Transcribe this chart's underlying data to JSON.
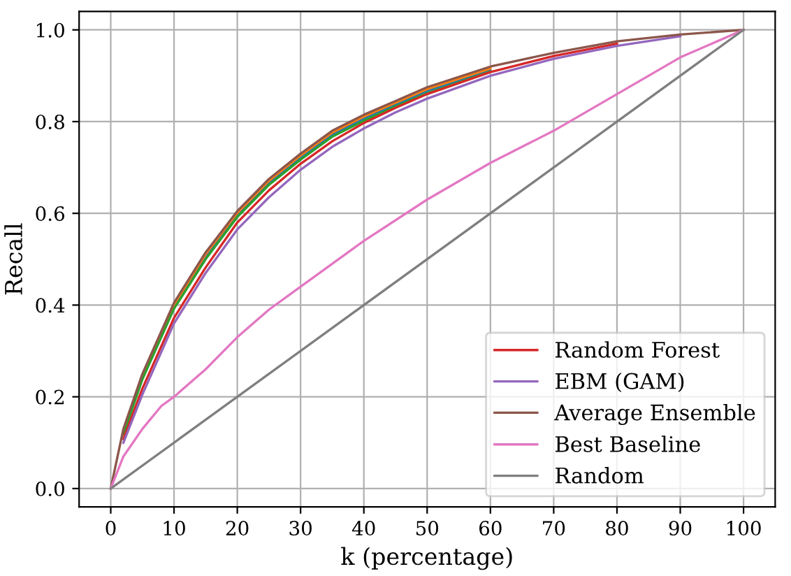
{
  "chart_data": {
    "type": "line",
    "xlabel": "k (percentage)",
    "ylabel": "Recall",
    "xlim": [
      -5,
      105
    ],
    "ylim": [
      -0.04,
      1.04
    ],
    "xticks": [
      0,
      10,
      20,
      30,
      40,
      50,
      60,
      70,
      80,
      90,
      100
    ],
    "yticks": [
      {
        "value": 0,
        "label": "0.0"
      },
      {
        "value": 0.2,
        "label": "0.2"
      },
      {
        "value": 0.4,
        "label": "0.4"
      },
      {
        "value": 0.6,
        "label": "0.6"
      },
      {
        "value": 0.8,
        "label": "0.8"
      },
      {
        "value": 1,
        "label": "1.0"
      }
    ],
    "grid": true,
    "legend": "bottom right",
    "marker": "none",
    "line_style": "solid",
    "series": [
      {
        "color": "#1f77b4",
        "x": [
          10,
          15,
          20,
          25,
          30,
          35,
          40,
          45,
          50,
          60
        ],
        "values": [
          0.397,
          0.507,
          0.597,
          0.667,
          0.722,
          0.772,
          0.807,
          0.837,
          0.867,
          0.912
        ]
      },
      {
        "color": "#ff7f0e",
        "x": [
          2,
          5,
          10,
          15,
          20,
          25,
          30,
          35,
          40,
          45,
          50,
          60
        ],
        "values": [
          0.126,
          0.246,
          0.401,
          0.511,
          0.601,
          0.671,
          0.726,
          0.776,
          0.811,
          0.841,
          0.871,
          0.916
        ]
      },
      {
        "color": "#2ca02c",
        "x": [
          2,
          5,
          10,
          15,
          20,
          25,
          30,
          35,
          40,
          45,
          50,
          60
        ],
        "values": [
          0.118,
          0.238,
          0.392,
          0.5,
          0.592,
          0.662,
          0.717,
          0.767,
          0.802,
          0.833,
          0.862,
          0.909
        ]
      },
      {
        "name": "Random Forest",
        "color": "#d62728",
        "x": [
          2,
          5,
          10,
          15,
          20,
          25,
          30,
          35,
          40,
          45,
          50,
          60,
          70,
          80
        ],
        "values": [
          0.108,
          0.218,
          0.372,
          0.482,
          0.58,
          0.65,
          0.708,
          0.757,
          0.797,
          0.83,
          0.86,
          0.908,
          0.943,
          0.97
        ]
      },
      {
        "name": "EBM (GAM)",
        "color": "#9467bd",
        "x": [
          2,
          5,
          10,
          15,
          20,
          25,
          30,
          35,
          40,
          45,
          50,
          60,
          70,
          80,
          90
        ],
        "values": [
          0.1,
          0.205,
          0.36,
          0.47,
          0.565,
          0.635,
          0.695,
          0.745,
          0.785,
          0.82,
          0.85,
          0.9,
          0.937,
          0.965,
          0.986
        ]
      },
      {
        "name": "Average Ensemble",
        "color": "#8c564b",
        "x": [
          0,
          2,
          5,
          10,
          15,
          20,
          25,
          30,
          35,
          40,
          45,
          50,
          60,
          70,
          80,
          90,
          100
        ],
        "values": [
          0,
          0.13,
          0.25,
          0.405,
          0.515,
          0.605,
          0.675,
          0.73,
          0.78,
          0.815,
          0.845,
          0.875,
          0.92,
          0.95,
          0.975,
          0.99,
          1.0
        ]
      },
      {
        "name": "Best Baseline",
        "color": "#e377c2",
        "x": [
          0,
          2,
          5,
          8,
          10,
          15,
          20,
          25,
          30,
          35,
          40,
          50,
          60,
          70,
          80,
          90,
          100
        ],
        "values": [
          0,
          0.07,
          0.13,
          0.18,
          0.2,
          0.26,
          0.33,
          0.39,
          0.44,
          0.49,
          0.54,
          0.63,
          0.71,
          0.78,
          0.86,
          0.94,
          1.0
        ]
      },
      {
        "name": "Random",
        "color": "#7f7f7f",
        "x": [
          0,
          100
        ],
        "values": [
          0,
          1
        ]
      }
    ]
  }
}
